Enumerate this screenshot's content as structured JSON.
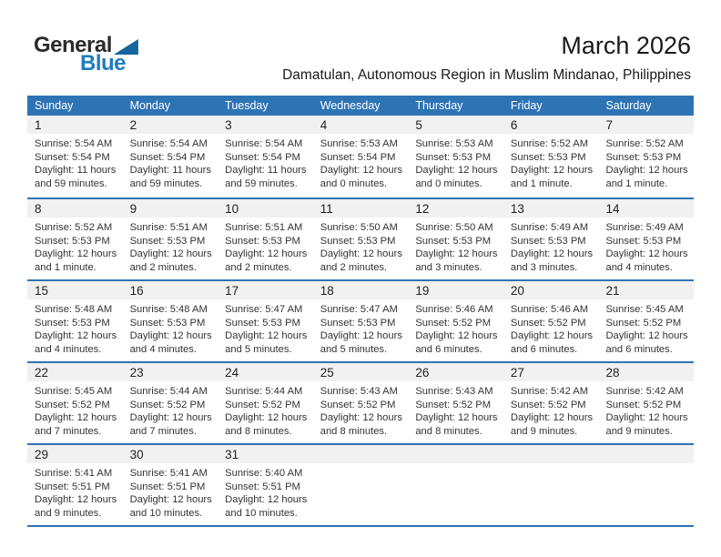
{
  "logo": {
    "general": "General",
    "blue": "Blue"
  },
  "title": "March 2026",
  "subtitle": "Damatulan, Autonomous Region in Muslim Mindanao, Philippines",
  "weekdays": [
    "Sunday",
    "Monday",
    "Tuesday",
    "Wednesday",
    "Thursday",
    "Friday",
    "Saturday"
  ],
  "colors": {
    "header_blue": "#2E74B5",
    "divider_blue": "#2E74B5",
    "number_band_gray": "#F1F1F1",
    "logo_text_dark": "#2B2B2B",
    "logo_blue": "#1E7CC1",
    "logo_triangle_blue": "#14649E"
  },
  "weeks": [
    [
      {
        "day": "1",
        "sunrise": "Sunrise: 5:54 AM",
        "sunset": "Sunset: 5:54 PM",
        "daylight_line1": "Daylight: 11 hours",
        "daylight_line2": "and 59 minutes."
      },
      {
        "day": "2",
        "sunrise": "Sunrise: 5:54 AM",
        "sunset": "Sunset: 5:54 PM",
        "daylight_line1": "Daylight: 11 hours",
        "daylight_line2": "and 59 minutes."
      },
      {
        "day": "3",
        "sunrise": "Sunrise: 5:54 AM",
        "sunset": "Sunset: 5:54 PM",
        "daylight_line1": "Daylight: 11 hours",
        "daylight_line2": "and 59 minutes."
      },
      {
        "day": "4",
        "sunrise": "Sunrise: 5:53 AM",
        "sunset": "Sunset: 5:54 PM",
        "daylight_line1": "Daylight: 12 hours",
        "daylight_line2": "and 0 minutes."
      },
      {
        "day": "5",
        "sunrise": "Sunrise: 5:53 AM",
        "sunset": "Sunset: 5:53 PM",
        "daylight_line1": "Daylight: 12 hours",
        "daylight_line2": "and 0 minutes."
      },
      {
        "day": "6",
        "sunrise": "Sunrise: 5:52 AM",
        "sunset": "Sunset: 5:53 PM",
        "daylight_line1": "Daylight: 12 hours",
        "daylight_line2": "and 1 minute."
      },
      {
        "day": "7",
        "sunrise": "Sunrise: 5:52 AM",
        "sunset": "Sunset: 5:53 PM",
        "daylight_line1": "Daylight: 12 hours",
        "daylight_line2": "and 1 minute."
      }
    ],
    [
      {
        "day": "8",
        "sunrise": "Sunrise: 5:52 AM",
        "sunset": "Sunset: 5:53 PM",
        "daylight_line1": "Daylight: 12 hours",
        "daylight_line2": "and 1 minute."
      },
      {
        "day": "9",
        "sunrise": "Sunrise: 5:51 AM",
        "sunset": "Sunset: 5:53 PM",
        "daylight_line1": "Daylight: 12 hours",
        "daylight_line2": "and 2 minutes."
      },
      {
        "day": "10",
        "sunrise": "Sunrise: 5:51 AM",
        "sunset": "Sunset: 5:53 PM",
        "daylight_line1": "Daylight: 12 hours",
        "daylight_line2": "and 2 minutes."
      },
      {
        "day": "11",
        "sunrise": "Sunrise: 5:50 AM",
        "sunset": "Sunset: 5:53 PM",
        "daylight_line1": "Daylight: 12 hours",
        "daylight_line2": "and 2 minutes."
      },
      {
        "day": "12",
        "sunrise": "Sunrise: 5:50 AM",
        "sunset": "Sunset: 5:53 PM",
        "daylight_line1": "Daylight: 12 hours",
        "daylight_line2": "and 3 minutes."
      },
      {
        "day": "13",
        "sunrise": "Sunrise: 5:49 AM",
        "sunset": "Sunset: 5:53 PM",
        "daylight_line1": "Daylight: 12 hours",
        "daylight_line2": "and 3 minutes."
      },
      {
        "day": "14",
        "sunrise": "Sunrise: 5:49 AM",
        "sunset": "Sunset: 5:53 PM",
        "daylight_line1": "Daylight: 12 hours",
        "daylight_line2": "and 4 minutes."
      }
    ],
    [
      {
        "day": "15",
        "sunrise": "Sunrise: 5:48 AM",
        "sunset": "Sunset: 5:53 PM",
        "daylight_line1": "Daylight: 12 hours",
        "daylight_line2": "and 4 minutes."
      },
      {
        "day": "16",
        "sunrise": "Sunrise: 5:48 AM",
        "sunset": "Sunset: 5:53 PM",
        "daylight_line1": "Daylight: 12 hours",
        "daylight_line2": "and 4 minutes."
      },
      {
        "day": "17",
        "sunrise": "Sunrise: 5:47 AM",
        "sunset": "Sunset: 5:53 PM",
        "daylight_line1": "Daylight: 12 hours",
        "daylight_line2": "and 5 minutes."
      },
      {
        "day": "18",
        "sunrise": "Sunrise: 5:47 AM",
        "sunset": "Sunset: 5:53 PM",
        "daylight_line1": "Daylight: 12 hours",
        "daylight_line2": "and 5 minutes."
      },
      {
        "day": "19",
        "sunrise": "Sunrise: 5:46 AM",
        "sunset": "Sunset: 5:52 PM",
        "daylight_line1": "Daylight: 12 hours",
        "daylight_line2": "and 6 minutes."
      },
      {
        "day": "20",
        "sunrise": "Sunrise: 5:46 AM",
        "sunset": "Sunset: 5:52 PM",
        "daylight_line1": "Daylight: 12 hours",
        "daylight_line2": "and 6 minutes."
      },
      {
        "day": "21",
        "sunrise": "Sunrise: 5:45 AM",
        "sunset": "Sunset: 5:52 PM",
        "daylight_line1": "Daylight: 12 hours",
        "daylight_line2": "and 6 minutes."
      }
    ],
    [
      {
        "day": "22",
        "sunrise": "Sunrise: 5:45 AM",
        "sunset": "Sunset: 5:52 PM",
        "daylight_line1": "Daylight: 12 hours",
        "daylight_line2": "and 7 minutes."
      },
      {
        "day": "23",
        "sunrise": "Sunrise: 5:44 AM",
        "sunset": "Sunset: 5:52 PM",
        "daylight_line1": "Daylight: 12 hours",
        "daylight_line2": "and 7 minutes."
      },
      {
        "day": "24",
        "sunrise": "Sunrise: 5:44 AM",
        "sunset": "Sunset: 5:52 PM",
        "daylight_line1": "Daylight: 12 hours",
        "daylight_line2": "and 8 minutes."
      },
      {
        "day": "25",
        "sunrise": "Sunrise: 5:43 AM",
        "sunset": "Sunset: 5:52 PM",
        "daylight_line1": "Daylight: 12 hours",
        "daylight_line2": "and 8 minutes."
      },
      {
        "day": "26",
        "sunrise": "Sunrise: 5:43 AM",
        "sunset": "Sunset: 5:52 PM",
        "daylight_line1": "Daylight: 12 hours",
        "daylight_line2": "and 8 minutes."
      },
      {
        "day": "27",
        "sunrise": "Sunrise: 5:42 AM",
        "sunset": "Sunset: 5:52 PM",
        "daylight_line1": "Daylight: 12 hours",
        "daylight_line2": "and 9 minutes."
      },
      {
        "day": "28",
        "sunrise": "Sunrise: 5:42 AM",
        "sunset": "Sunset: 5:52 PM",
        "daylight_line1": "Daylight: 12 hours",
        "daylight_line2": "and 9 minutes."
      }
    ],
    [
      {
        "day": "29",
        "sunrise": "Sunrise: 5:41 AM",
        "sunset": "Sunset: 5:51 PM",
        "daylight_line1": "Daylight: 12 hours",
        "daylight_line2": "and 9 minutes."
      },
      {
        "day": "30",
        "sunrise": "Sunrise: 5:41 AM",
        "sunset": "Sunset: 5:51 PM",
        "daylight_line1": "Daylight: 12 hours",
        "daylight_line2": "and 10 minutes."
      },
      {
        "day": "31",
        "sunrise": "Sunrise: 5:40 AM",
        "sunset": "Sunset: 5:51 PM",
        "daylight_line1": "Daylight: 12 hours",
        "daylight_line2": "and 10 minutes."
      },
      null,
      null,
      null,
      null
    ]
  ]
}
